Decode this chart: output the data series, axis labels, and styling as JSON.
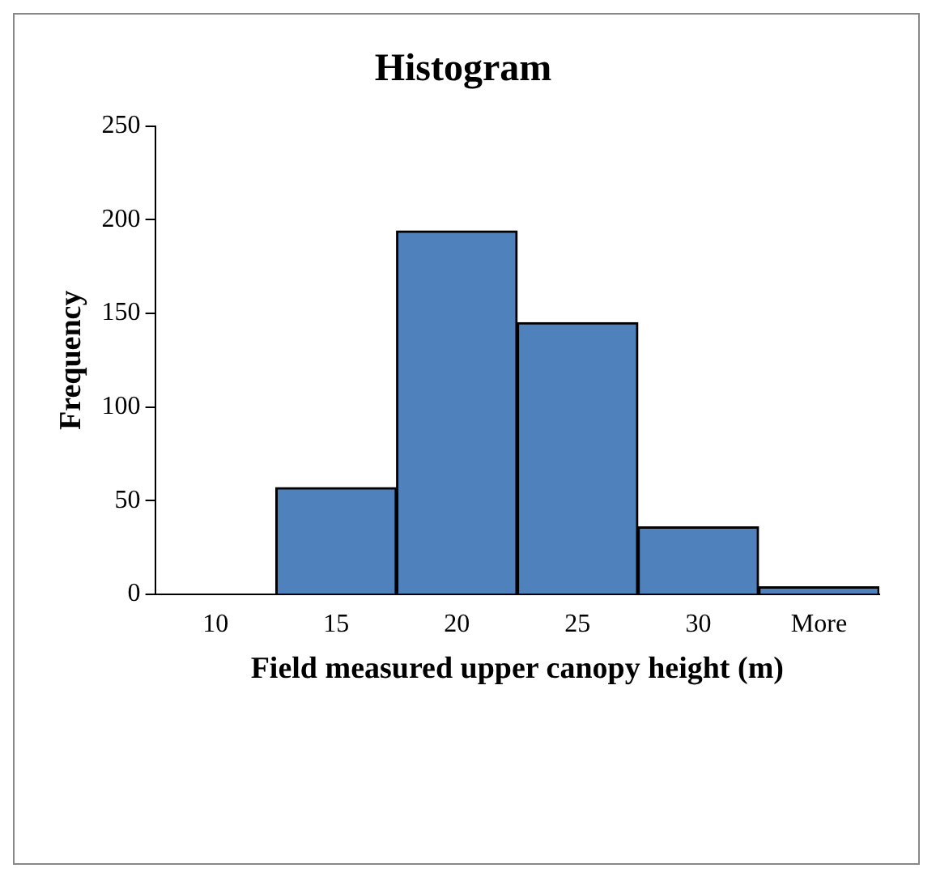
{
  "chart_data": {
    "type": "bar",
    "title": "Histogram",
    "xlabel": "Field measured upper canopy height (m)",
    "ylabel": "Frequency",
    "categories": [
      "10",
      "15",
      "20",
      "25",
      "30",
      "More"
    ],
    "values": [
      0,
      57,
      194,
      145,
      36,
      4
    ],
    "color": "#4f81bd",
    "ylim": [
      0,
      250
    ],
    "yticks": [
      0,
      50,
      100,
      150,
      200,
      250
    ]
  }
}
